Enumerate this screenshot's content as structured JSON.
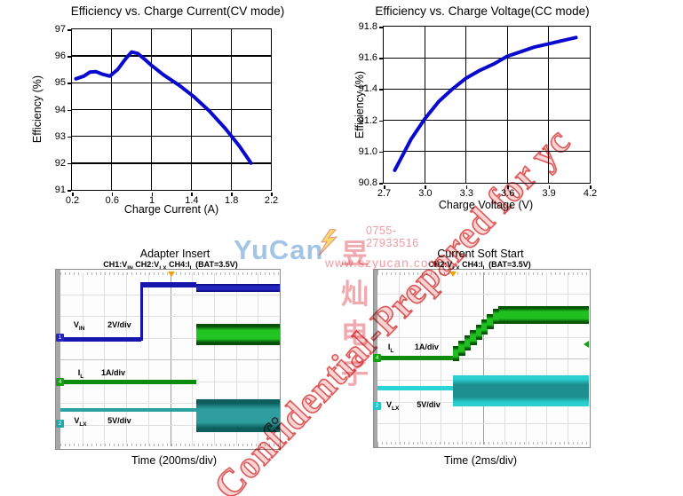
{
  "watermarks": {
    "diagonal_text": "Confidential-Prepared for yc",
    "logo_latin": "YuCan",
    "logo_cjk": "昱灿电子",
    "phone": "0755-27933516",
    "website": "www.szyucan.com",
    "red": "#d63030",
    "logo_blue": "#7aacda",
    "logo_pink": "#ee949c"
  },
  "chart_data": [
    {
      "type": "line",
      "title": "Efficiency vs. Charge Current(CV mode)",
      "xlabel": "Charge Current (A)",
      "ylabel": "Efficiency (%)",
      "xlim": [
        0.2,
        2.2
      ],
      "ylim": [
        91,
        97
      ],
      "x_ticks": [
        0.2,
        0.6,
        1,
        1.4,
        1.8,
        2.2
      ],
      "x_tick_labels": [
        "0.2",
        "0.6",
        "1",
        "1.4",
        "1.8",
        "2.2"
      ],
      "y_ticks": [
        97,
        96,
        95,
        94,
        93,
        92,
        91
      ],
      "y_tick_labels": [
        "97",
        "96",
        "95",
        "94",
        "93",
        "92",
        "91"
      ],
      "grid": true,
      "line_color": "#0a0ace",
      "points": [
        [
          0.24,
          95.15
        ],
        [
          0.32,
          95.25
        ],
        [
          0.38,
          95.4
        ],
        [
          0.44,
          95.42
        ],
        [
          0.5,
          95.33
        ],
        [
          0.58,
          95.25
        ],
        [
          0.66,
          95.5
        ],
        [
          0.74,
          95.9
        ],
        [
          0.8,
          96.15
        ],
        [
          0.86,
          96.1
        ],
        [
          0.94,
          95.85
        ],
        [
          1.0,
          95.65
        ],
        [
          1.12,
          95.3
        ],
        [
          1.28,
          94.9
        ],
        [
          1.42,
          94.5
        ],
        [
          1.58,
          93.95
        ],
        [
          1.74,
          93.3
        ],
        [
          1.88,
          92.65
        ],
        [
          2.0,
          92.0
        ]
      ]
    },
    {
      "type": "line",
      "title": "Efficiency vs. Charge Voltage(CC mode)",
      "xlabel": "Charge Voltage (V)",
      "ylabel": "Efficiency (%)",
      "xlim": [
        2.7,
        4.2
      ],
      "ylim": [
        90.8,
        91.8
      ],
      "x_ticks": [
        2.7,
        3.0,
        3.3,
        3.6,
        3.9,
        4.2
      ],
      "x_tick_labels": [
        "2.7",
        "3.0",
        "3.3",
        "3.6",
        "3.9",
        "4.2"
      ],
      "y_ticks": [
        91.8,
        91.6,
        91.4,
        91.2,
        91.0,
        90.8
      ],
      "y_tick_labels": [
        "91.8",
        "91.6",
        "91.4",
        "91.2",
        "91.0",
        "90.8"
      ],
      "grid": true,
      "line_color": "#0a0ace",
      "points": [
        [
          2.78,
          90.88
        ],
        [
          2.84,
          90.98
        ],
        [
          2.9,
          91.08
        ],
        [
          3.0,
          91.21
        ],
        [
          3.1,
          91.32
        ],
        [
          3.2,
          91.4
        ],
        [
          3.3,
          91.47
        ],
        [
          3.4,
          91.52
        ],
        [
          3.5,
          91.56
        ],
        [
          3.6,
          91.61
        ],
        [
          3.7,
          91.64
        ],
        [
          3.8,
          91.67
        ],
        [
          3.9,
          91.69
        ],
        [
          4.0,
          91.71
        ],
        [
          4.1,
          91.73
        ]
      ]
    },
    {
      "type": "scope",
      "title": "Adapter Insert",
      "subtitle_parts": [
        {
          "t": "CH1:V"
        },
        {
          "sub": "IN"
        },
        {
          "t": "  CH2:V"
        },
        {
          "sub": "LX"
        },
        {
          "t": "  CH4:I"
        },
        {
          "sub": "L"
        },
        {
          "t": "  (BAT=3.5V)"
        }
      ],
      "time_label": "Time (200ms/div)",
      "divs": [
        10,
        8
      ],
      "trigger_x": 0.508,
      "traces": [
        {
          "name": "VIN",
          "line": "#1616ae",
          "dark": "#0d0d8a",
          "bright": "#2424c0",
          "segments": [
            {
              "x": 0,
              "w": 0.368,
              "y": 0.372,
              "h": 0.028,
              "solid": 1
            },
            {
              "x": 0.364,
              "w": 0.013,
              "y": 0.056,
              "h": 0.335,
              "solid": 1
            },
            {
              "x": 0.368,
              "w": 0.252,
              "y": 0.056,
              "h": 0.03,
              "solid": 1
            },
            {
              "x": 0.62,
              "w": 0.38,
              "y": 0.066,
              "h": 0.046
            }
          ]
        },
        {
          "name": "IL",
          "line": "#0e8a0e",
          "dark": "#084f08",
          "bright": "#22c422",
          "segments": [
            {
              "x": 0,
              "w": 0.62,
              "y": 0.617,
              "h": 0.027,
              "solid": 1
            },
            {
              "x": 0.62,
              "w": 0.38,
              "y": 0.296,
              "h": 0.124
            }
          ]
        },
        {
          "name": "VLX",
          "line": "#2aa0a0",
          "dark": "#0d5f5f",
          "bright": "#2f9e9e",
          "segments": [
            {
              "x": 0,
              "w": 0.62,
              "y": 0.78,
              "h": 0.023,
              "solid": 1
            },
            {
              "x": 0.62,
              "w": 0.38,
              "y": 0.73,
              "h": 0.186
            }
          ]
        }
      ],
      "markers": [
        {
          "y": 0.377,
          "color": "#2525c0",
          "label": "1"
        },
        {
          "y": 0.63,
          "color": "#15a015",
          "label": "4"
        },
        {
          "y": 0.868,
          "color": "#20a8a8",
          "label": "2"
        }
      ],
      "labels": [
        {
          "x": 0.06,
          "y": 0.275,
          "base": "V",
          "sub": "IN",
          "divx": 0.215,
          "div": "2V/div"
        },
        {
          "x": 0.08,
          "y": 0.552,
          "base": "I",
          "sub": "L",
          "divx": 0.186,
          "div": "1A/div"
        },
        {
          "x": 0.062,
          "y": 0.828,
          "base": "V",
          "sub": "LX",
          "divx": 0.215,
          "div": "5V/div"
        }
      ]
    },
    {
      "type": "scope",
      "title": "Current Soft Start",
      "subtitle_parts": [
        {
          "t": "CH2:V"
        },
        {
          "sub": "LX"
        },
        {
          "t": "  CH4:I"
        },
        {
          "sub": "L"
        },
        {
          "t": "  (BAT=3.5V)"
        }
      ],
      "time_label": "Time (2ms/div)",
      "divs": [
        10,
        8
      ],
      "trigger_x": 0.356,
      "right_marker": {
        "y": 0.42,
        "color": "#15a015"
      },
      "traces": [
        {
          "name": "IL",
          "line": "#0e8a0e",
          "dark": "#075407",
          "bright": "#1fc01f",
          "stairs": {
            "x0": 0.356,
            "x1": 0.573,
            "y0": 0.43,
            "y1": 0.21,
            "n": 8,
            "h": 0.088
          },
          "segments": [
            {
              "x": 0,
              "w": 0.356,
              "y": 0.483,
              "h": 0.026,
              "solid": 1
            },
            {
              "x": 0.573,
              "w": 0.427,
              "y": 0.196,
              "h": 0.104
            }
          ]
        },
        {
          "name": "VLX",
          "line": "#2ad4d4",
          "dark": "#2ad0d0",
          "bright": "#1d8f8f",
          "segments": [
            {
              "x": 0,
              "w": 0.356,
              "y": 0.662,
              "h": 0.022,
              "solid": 1
            },
            {
              "x": 0.356,
              "w": 0.644,
              "y": 0.598,
              "h": 0.181
            }
          ]
        }
      ],
      "markers": [
        {
          "y": 0.495,
          "color": "#15a015",
          "label": "4"
        },
        {
          "y": 0.775,
          "color": "#26c6c6",
          "label": "2"
        }
      ],
      "labels": [
        {
          "x": 0.05,
          "y": 0.408,
          "base": "I",
          "sub": "L",
          "divx": 0.176,
          "div": "1A/div"
        },
        {
          "x": 0.042,
          "y": 0.742,
          "base": "V",
          "sub": "LX",
          "divx": 0.186,
          "div": "5V/div"
        }
      ]
    }
  ]
}
